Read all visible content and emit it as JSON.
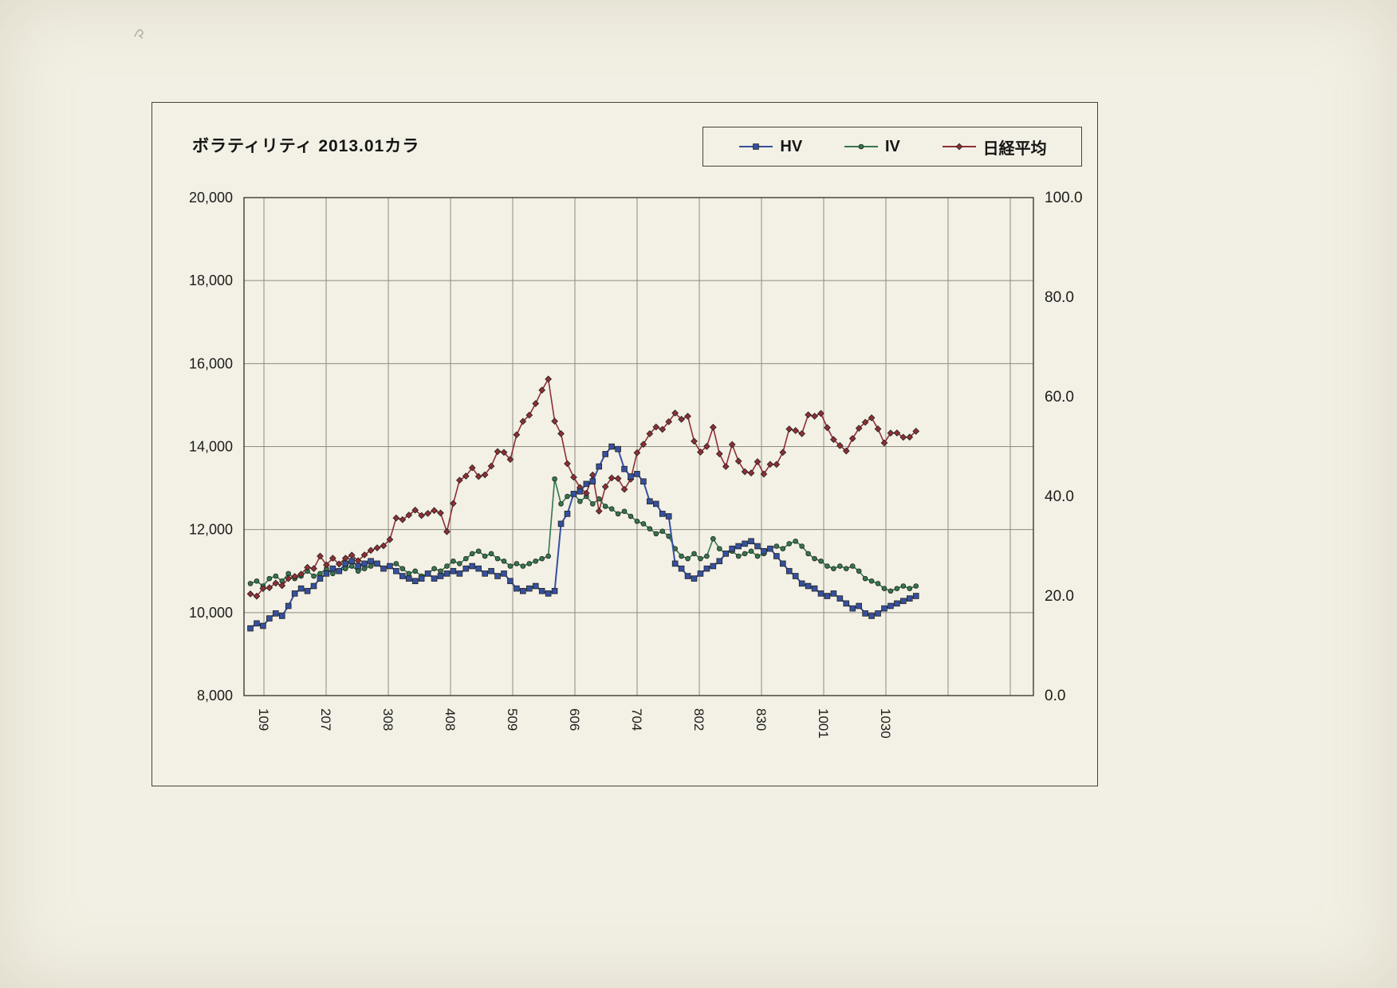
{
  "page": {
    "background": "#f2efe4"
  },
  "chart": {
    "title": "ボラティリティ 2013.01カラ",
    "legend": [
      {
        "label": "HV",
        "color": "#35509f",
        "marker": "square"
      },
      {
        "label": "IV",
        "color": "#35764e",
        "marker": "circle"
      },
      {
        "label": "日経平均",
        "color": "#8e2f34",
        "marker": "diamond"
      }
    ]
  },
  "chart_data": {
    "type": "line",
    "title": "ボラティリティ 2013.01カラ",
    "x_tick_labels": [
      "109",
      "207",
      "308",
      "408",
      "509",
      "606",
      "704",
      "802",
      "830",
      "1001",
      "1030"
    ],
    "left_axis": {
      "min": 8000,
      "max": 20000,
      "step": 2000,
      "format": "thousands"
    },
    "right_axis": {
      "min": 0,
      "max": 100,
      "step": 20,
      "format": "one-decimal"
    },
    "grid": true,
    "legend_position": "top-right",
    "series": [
      {
        "name": "IV",
        "axis": "right",
        "color": "#35764e",
        "marker": "circle",
        "values": [
          22.5,
          23.0,
          22.0,
          23.5,
          24.0,
          23.0,
          24.5,
          23.5,
          24.0,
          25.0,
          24.0,
          24.5,
          25.5,
          24.5,
          25.0,
          25.5,
          26.0,
          25.0,
          25.5,
          26.0,
          26.5,
          25.5,
          26.0,
          26.5,
          25.5,
          24.5,
          25.0,
          24.0,
          24.5,
          25.5,
          25.0,
          26.0,
          27.0,
          26.5,
          27.5,
          28.5,
          29.0,
          28.0,
          28.5,
          27.5,
          27.0,
          26.0,
          26.5,
          26.0,
          26.5,
          27.0,
          27.5,
          28.0,
          43.5,
          38.5,
          40.0,
          40.5,
          39.0,
          40.0,
          38.5,
          39.5,
          38.0,
          37.5,
          36.5,
          37.0,
          36.0,
          35.0,
          34.5,
          33.5,
          32.5,
          33.0,
          32.0,
          29.5,
          28.0,
          27.5,
          28.5,
          27.5,
          28.0,
          31.5,
          29.5,
          28.5,
          29.0,
          28.0,
          28.5,
          29.0,
          28.0,
          28.5,
          29.5,
          30.0,
          29.5,
          30.5,
          31.0,
          30.0,
          28.5,
          27.5,
          27.0,
          26.0,
          25.5,
          26.0,
          25.5,
          26.0,
          25.0,
          23.5,
          23.0,
          22.5,
          21.5,
          21.0,
          21.5,
          22.0,
          21.5,
          22.0
        ]
      },
      {
        "name": "日経平均",
        "axis": "left",
        "color": "#8e2f34",
        "marker": "diamond",
        "values": [
          10450,
          10395,
          10580,
          10600,
          10710,
          10650,
          10820,
          10870,
          10925,
          11090,
          11060,
          11360,
          11150,
          11310,
          11170,
          11310,
          11385,
          11250,
          11390,
          11500,
          11560,
          11610,
          11760,
          12280,
          12240,
          12350,
          12470,
          12340,
          12390,
          12460,
          12400,
          11950,
          12630,
          13190,
          13290,
          13490,
          13280,
          13320,
          13530,
          13880,
          13860,
          13690,
          14285,
          14607,
          14758,
          15037,
          15360,
          15627,
          14612,
          14311,
          13589,
          13262,
          13015,
          12877,
          13317,
          12445,
          13033,
          13245,
          13230,
          12970,
          13214,
          13852,
          14056,
          14310,
          14472,
          14416,
          14599,
          14808,
          14658,
          14731,
          14130,
          13869,
          14005,
          14466,
          13825,
          13519,
          14050,
          13650,
          13396,
          13365,
          13636,
          13338,
          13572,
          13571,
          13860,
          14423,
          14387,
          14311,
          14766,
          14732,
          14799,
          14456,
          14170,
          14024,
          13894,
          14194,
          14441,
          14586,
          14693,
          14426,
          14088,
          14326,
          14328,
          14225,
          14228,
          14370
        ]
      },
      {
        "name": "HV",
        "axis": "right",
        "color": "#35509f",
        "marker": "square",
        "values": [
          13.5,
          14.5,
          14.0,
          15.5,
          16.5,
          16.0,
          18.0,
          20.5,
          21.5,
          21.0,
          22.0,
          23.5,
          24.5,
          25.5,
          25.0,
          26.5,
          27.0,
          26.0,
          26.5,
          27.0,
          26.5,
          25.5,
          26.0,
          25.0,
          24.0,
          23.5,
          23.0,
          23.5,
          24.5,
          23.5,
          24.0,
          24.5,
          25.0,
          24.5,
          25.5,
          26.0,
          25.5,
          24.5,
          25.0,
          24.0,
          24.5,
          23.0,
          21.5,
          21.0,
          21.5,
          22.0,
          21.0,
          20.5,
          21.0,
          34.5,
          36.5,
          40.5,
          41.0,
          42.5,
          43.0,
          46.0,
          48.5,
          50.0,
          49.5,
          45.5,
          44.0,
          44.5,
          43.0,
          39.0,
          38.5,
          36.5,
          36.0,
          26.5,
          25.5,
          24.0,
          23.5,
          24.5,
          25.5,
          26.0,
          27.0,
          28.5,
          29.5,
          30.0,
          30.5,
          31.0,
          30.0,
          29.0,
          29.5,
          28.0,
          26.5,
          25.0,
          24.0,
          22.5,
          22.0,
          21.5,
          20.5,
          20.0,
          20.5,
          19.5,
          18.5,
          17.5,
          18.0,
          16.5,
          16.0,
          16.5,
          17.5,
          18.0,
          18.5,
          19.0,
          19.5,
          20.0
        ]
      }
    ]
  }
}
